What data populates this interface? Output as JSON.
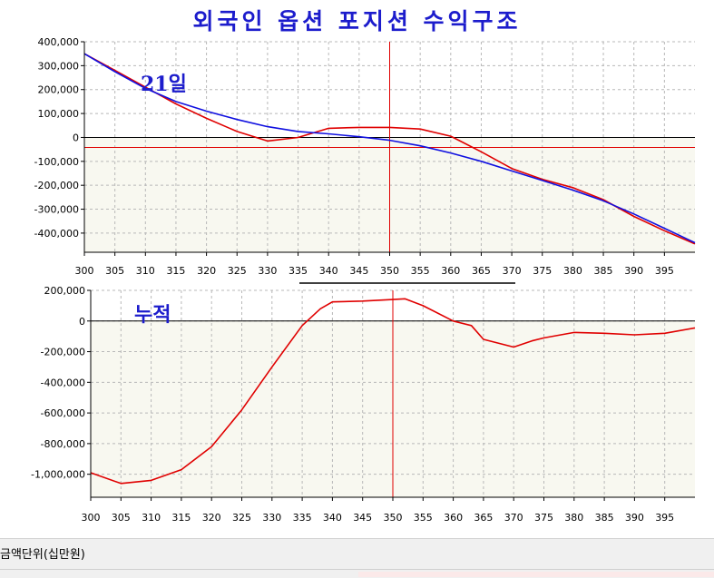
{
  "title": "외국인 옵션 포지션 수익구조",
  "unit_label": "금액단위(십만원)",
  "colors": {
    "red": "#e00000",
    "blue": "#1010e0",
    "annotation": "#1c1ccc",
    "grid": "#b8b8b8",
    "plot_bg_below_zero": "#f8f8f0"
  },
  "chart_data": [
    {
      "type": "line",
      "annotation": "21일",
      "xlim": [
        300,
        400
      ],
      "ylim": [
        -480000,
        400000
      ],
      "xticks": [
        300,
        305,
        310,
        315,
        320,
        325,
        330,
        335,
        340,
        345,
        350,
        355,
        360,
        365,
        370,
        375,
        380,
        385,
        390,
        395
      ],
      "yticks": [
        400000,
        300000,
        200000,
        100000,
        0,
        -100000,
        -200000,
        -300000,
        -400000
      ],
      "ytick_labels": [
        "400,000",
        "300,000",
        "200,000",
        "100,000",
        "0",
        "-100,000",
        "-200,000",
        "-300,000",
        "-400,000"
      ],
      "grid": true,
      "vline_x": 350,
      "hline_y": -42000,
      "series": [
        {
          "color": "red",
          "points": [
            [
              300,
              350000
            ],
            [
              305,
              280000
            ],
            [
              310,
              210000
            ],
            [
              315,
              140000
            ],
            [
              320,
              80000
            ],
            [
              325,
              25000
            ],
            [
              330,
              -15000
            ],
            [
              335,
              0
            ],
            [
              340,
              38000
            ],
            [
              345,
              42000
            ],
            [
              350,
              42000
            ],
            [
              355,
              35000
            ],
            [
              360,
              5000
            ],
            [
              365,
              -60000
            ],
            [
              370,
              -130000
            ],
            [
              375,
              -175000
            ],
            [
              380,
              -210000
            ],
            [
              385,
              -260000
            ],
            [
              390,
              -330000
            ],
            [
              395,
              -390000
            ],
            [
              400,
              -445000
            ]
          ]
        },
        {
          "color": "blue",
          "points": [
            [
              300,
              350000
            ],
            [
              305,
              275000
            ],
            [
              310,
              205000
            ],
            [
              315,
              150000
            ],
            [
              320,
              110000
            ],
            [
              325,
              75000
            ],
            [
              330,
              45000
            ],
            [
              335,
              25000
            ],
            [
              340,
              15000
            ],
            [
              345,
              3000
            ],
            [
              350,
              -12000
            ],
            [
              355,
              -35000
            ],
            [
              360,
              -65000
            ],
            [
              365,
              -100000
            ],
            [
              370,
              -140000
            ],
            [
              375,
              -180000
            ],
            [
              380,
              -220000
            ],
            [
              385,
              -265000
            ],
            [
              390,
              -320000
            ],
            [
              395,
              -380000
            ],
            [
              400,
              -440000
            ]
          ]
        }
      ]
    },
    {
      "type": "line",
      "annotation": "누적",
      "xlim": [
        300,
        400
      ],
      "ylim": [
        -1150000,
        200000
      ],
      "xticks": [
        300,
        305,
        310,
        315,
        320,
        325,
        330,
        335,
        340,
        345,
        350,
        355,
        360,
        365,
        370,
        375,
        380,
        385,
        390,
        395
      ],
      "yticks": [
        200000,
        0,
        -200000,
        -400000,
        -600000,
        -800000,
        -1000000
      ],
      "ytick_labels": [
        "200,000",
        "0",
        "-200,000",
        "-400,000",
        "-600,000",
        "-800,000",
        "-1,000,000"
      ],
      "grid": true,
      "vline_x": 350,
      "series": [
        {
          "color": "red",
          "points": [
            [
              300,
              -990000
            ],
            [
              305,
              -1060000
            ],
            [
              310,
              -1040000
            ],
            [
              315,
              -970000
            ],
            [
              320,
              -820000
            ],
            [
              325,
              -580000
            ],
            [
              330,
              -300000
            ],
            [
              335,
              -30000
            ],
            [
              338,
              80000
            ],
            [
              340,
              125000
            ],
            [
              345,
              130000
            ],
            [
              350,
              140000
            ],
            [
              352,
              145000
            ],
            [
              355,
              100000
            ],
            [
              360,
              0
            ],
            [
              363,
              -30000
            ],
            [
              365,
              -120000
            ],
            [
              370,
              -170000
            ],
            [
              373,
              -130000
            ],
            [
              375,
              -110000
            ],
            [
              380,
              -75000
            ],
            [
              385,
              -80000
            ],
            [
              390,
              -90000
            ],
            [
              395,
              -80000
            ],
            [
              400,
              -45000
            ]
          ]
        }
      ]
    }
  ]
}
